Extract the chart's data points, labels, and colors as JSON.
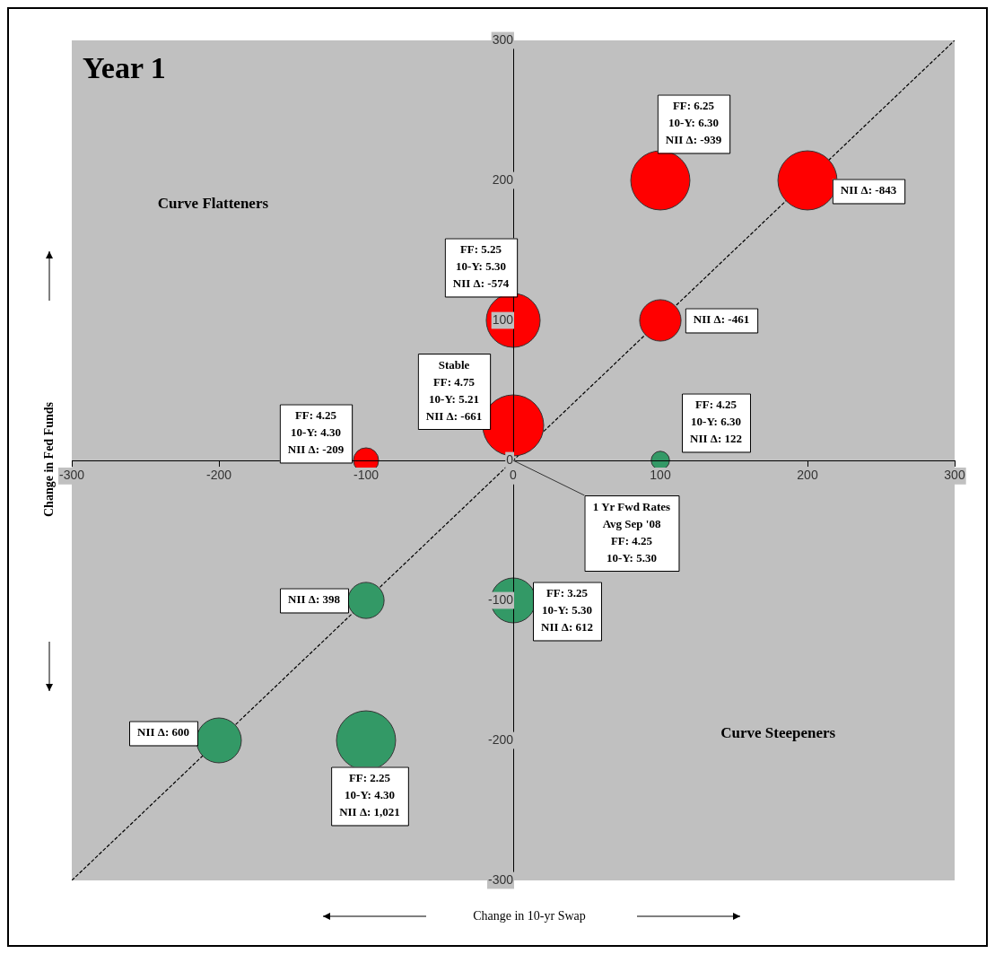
{
  "chart_data": {
    "type": "bubble",
    "title": "Year 1",
    "xlabel": "Change in 10-yr Swap",
    "ylabel": "Change in Fed Funds",
    "xlim": [
      -300,
      300
    ],
    "ylim": [
      -300,
      300
    ],
    "xticks": [
      -300,
      -200,
      -100,
      0,
      100,
      200,
      300
    ],
    "yticks": [
      -300,
      -200,
      -100,
      0,
      100,
      200,
      300
    ],
    "grid": false,
    "legend": false,
    "series": [
      {
        "color": "#ff0000",
        "x": [
          100,
          200,
          0,
          100,
          0,
          -100
        ],
        "values": [
          200,
          200,
          100,
          100,
          25,
          0
        ],
        "sizes": [
          0.94,
          0.94,
          0.78,
          0.46,
          1,
          0.17
        ]
      },
      {
        "color": "#339966",
        "x": [
          100,
          -100,
          0,
          -200,
          -100
        ],
        "values": [
          0,
          -100,
          -100,
          -200,
          -200
        ],
        "sizes": [
          0.09,
          0.35,
          0.54,
          0.54,
          0.94
        ]
      },
      {
        "type": "line",
        "color": "#000000",
        "line_style": "dashed",
        "marker": "none",
        "x": [
          -300,
          300
        ],
        "values": [
          -300,
          300
        ]
      }
    ],
    "annotations": [
      {
        "text": "FF: 6.25\n10-Y: 6.30\nNII Δ: -939",
        "x": 100,
        "y": 200
      },
      {
        "text": "NII Δ: -843",
        "x": 200,
        "y": 200
      },
      {
        "text": "FF: 5.25\n10-Y: 5.30\nNII Δ: -574",
        "x": 0,
        "y": 100
      },
      {
        "text": "NII Δ: -461",
        "x": 100,
        "y": 100
      },
      {
        "text": "Stable\nFF: 4.75\n10-Y: 5.21\nNII Δ: -661",
        "x": 0,
        "y": 25
      },
      {
        "text": "FF: 4.25\n10-Y: 4.30\nNII Δ: -209",
        "x": -100,
        "y": 0
      },
      {
        "text": "FF: 4.25\n10-Y: 6.30\nNII Δ: 122",
        "x": 100,
        "y": 0
      },
      {
        "text": "1 Yr Fwd Rates\nAvg Sep '08\nFF: 4.25\n10-Y: 5.30",
        "x": 0,
        "y": 0
      },
      {
        "text": "NII Δ: 398",
        "x": -100,
        "y": -100
      },
      {
        "text": "FF: 3.25\n10-Y: 5.30\nNII Δ: 612",
        "x": 0,
        "y": -100
      },
      {
        "text": "NII Δ: 600",
        "x": -200,
        "y": -200
      },
      {
        "text": "FF: 2.25\n10-Y: 4.30\nNII Δ: 1,021",
        "x": -100,
        "y": -200
      },
      "Curve Flatteners",
      "Curve Steepeners"
    ]
  }
}
